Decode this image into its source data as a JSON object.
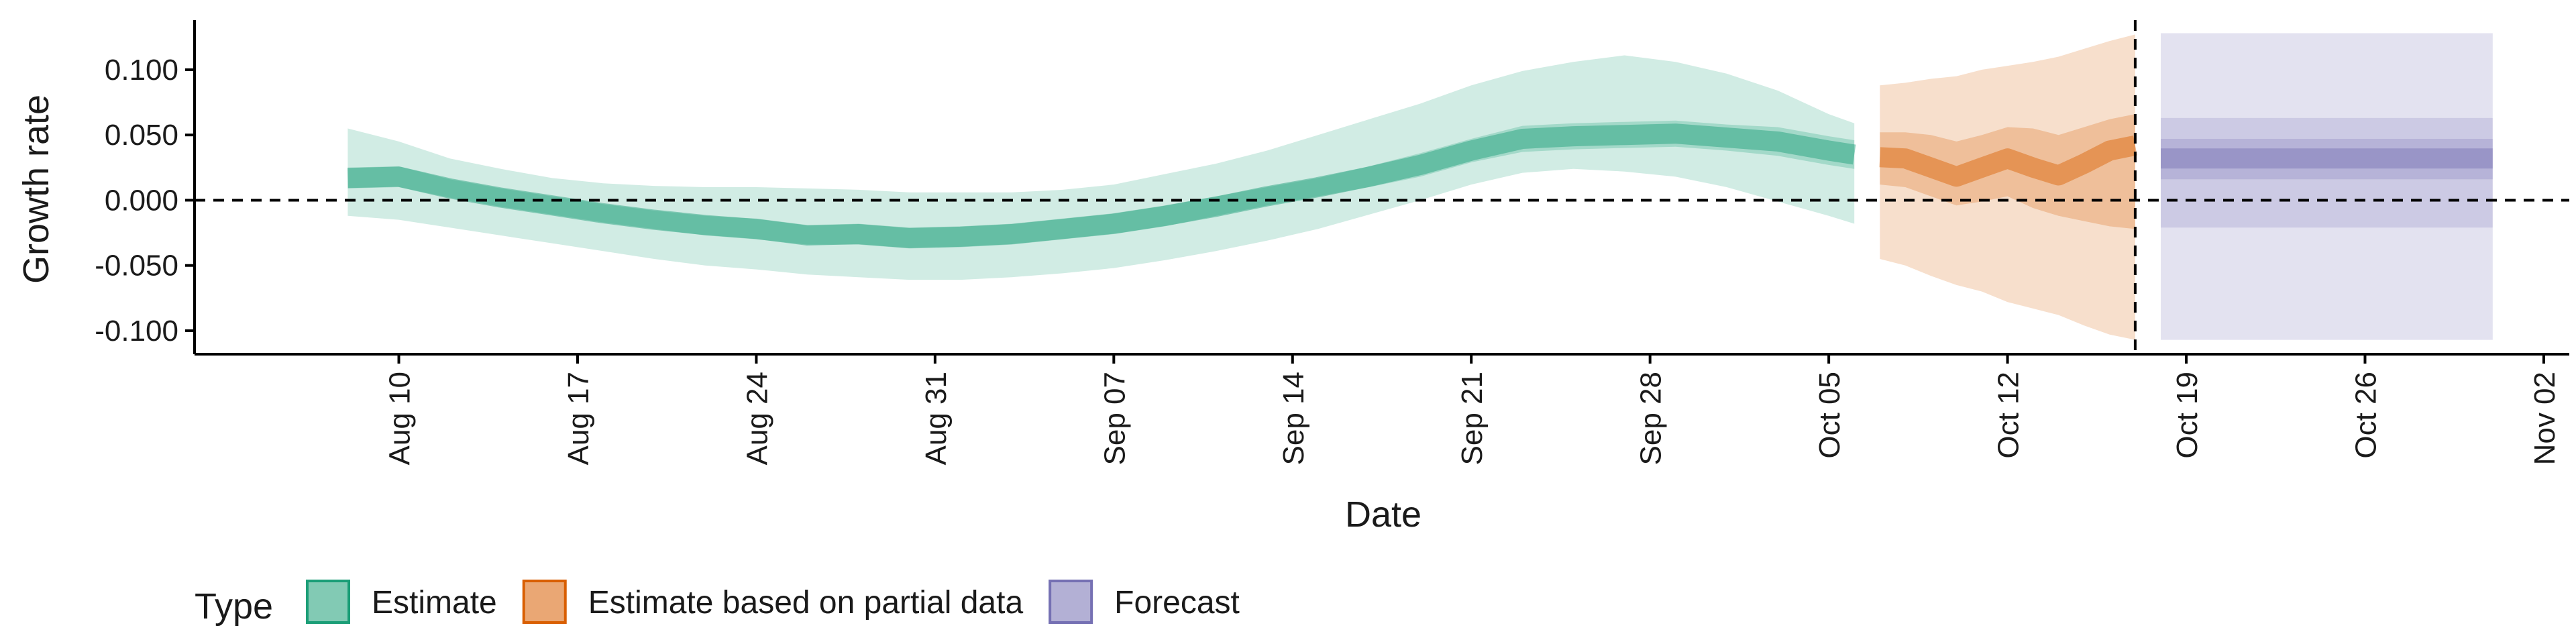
{
  "chart_data": {
    "type": "area",
    "xlabel": "Date",
    "ylabel": "Growth rate",
    "ylim": [
      -0.118,
      0.138
    ],
    "xlim": [
      "2020-08-02",
      "2020-11-03"
    ],
    "y_ticks": [
      -0.1,
      -0.05,
      0.0,
      0.05,
      0.1
    ],
    "y_tick_labels": [
      "-0.100",
      "-0.050",
      "0.000",
      "0.050",
      "0.100"
    ],
    "x_ticks": [
      "2020-08-10",
      "2020-08-17",
      "2020-08-24",
      "2020-08-31",
      "2020-09-07",
      "2020-09-14",
      "2020-09-21",
      "2020-09-28",
      "2020-10-05",
      "2020-10-12",
      "2020-10-19",
      "2020-10-26",
      "2020-11-02"
    ],
    "x_tick_labels": [
      "Aug 10",
      "Aug 17",
      "Aug 24",
      "Aug 31",
      "Sep 07",
      "Sep 14",
      "Sep 21",
      "Sep 28",
      "Oct 05",
      "Oct 12",
      "Oct 19",
      "Oct 26",
      "Nov 02"
    ],
    "reference_lines": {
      "horizontal_y": 0.0,
      "vertical_x": "2020-10-17"
    },
    "grid": false,
    "legend": {
      "title": "Type",
      "position": "bottom-left",
      "entries": [
        {
          "label": "Estimate",
          "fill": "#1b9e77",
          "border": "#1b9e77"
        },
        {
          "label": "Estimate based on partial data",
          "fill": "#d95f02",
          "border": "#d95f02"
        },
        {
          "label": "Forecast",
          "fill": "#7570b3",
          "border": "#7570b3"
        }
      ]
    },
    "series": [
      {
        "name": "Estimate",
        "color": "#1b9e77",
        "x": [
          "2020-08-08",
          "2020-08-10",
          "2020-08-12",
          "2020-08-14",
          "2020-08-16",
          "2020-08-18",
          "2020-08-20",
          "2020-08-22",
          "2020-08-24",
          "2020-08-26",
          "2020-08-28",
          "2020-08-30",
          "2020-09-01",
          "2020-09-03",
          "2020-09-05",
          "2020-09-07",
          "2020-09-09",
          "2020-09-11",
          "2020-09-13",
          "2020-09-15",
          "2020-09-17",
          "2020-09-19",
          "2020-09-21",
          "2020-09-23",
          "2020-09-25",
          "2020-09-27",
          "2020-09-29",
          "2020-10-01",
          "2020-10-03",
          "2020-10-05",
          "2020-10-06"
        ],
        "median": [
          0.017,
          0.018,
          0.009,
          0.002,
          -0.004,
          -0.01,
          -0.015,
          -0.019,
          -0.022,
          -0.027,
          -0.026,
          -0.029,
          -0.028,
          -0.026,
          -0.022,
          -0.018,
          -0.012,
          -0.005,
          0.003,
          0.01,
          0.018,
          0.027,
          0.038,
          0.047,
          0.049,
          0.05,
          0.051,
          0.048,
          0.045,
          0.038,
          0.035
        ],
        "lower_50": [
          0.009,
          0.01,
          0.002,
          -0.005,
          -0.011,
          -0.017,
          -0.022,
          -0.027,
          -0.03,
          -0.034,
          -0.034,
          -0.037,
          -0.036,
          -0.034,
          -0.03,
          -0.026,
          -0.02,
          -0.012,
          -0.004,
          0.003,
          0.01,
          0.018,
          0.029,
          0.037,
          0.039,
          0.04,
          0.041,
          0.038,
          0.034,
          0.027,
          0.024
        ],
        "upper_50": [
          0.025,
          0.026,
          0.016,
          0.009,
          0.003,
          -0.003,
          -0.008,
          -0.012,
          -0.014,
          -0.019,
          -0.018,
          -0.021,
          -0.02,
          -0.018,
          -0.014,
          -0.01,
          -0.004,
          0.003,
          0.01,
          0.017,
          0.026,
          0.036,
          0.047,
          0.057,
          0.059,
          0.06,
          0.061,
          0.058,
          0.056,
          0.049,
          0.046
        ],
        "lower_90": [
          -0.012,
          -0.015,
          -0.021,
          -0.027,
          -0.033,
          -0.039,
          -0.045,
          -0.05,
          -0.053,
          -0.057,
          -0.059,
          -0.061,
          -0.061,
          -0.059,
          -0.056,
          -0.052,
          -0.046,
          -0.039,
          -0.031,
          -0.022,
          -0.011,
          0.0,
          0.012,
          0.021,
          0.024,
          0.022,
          0.018,
          0.01,
          -0.001,
          -0.012,
          -0.018
        ],
        "upper_90": [
          0.055,
          0.045,
          0.032,
          0.024,
          0.017,
          0.013,
          0.011,
          0.01,
          0.01,
          0.009,
          0.008,
          0.006,
          0.006,
          0.006,
          0.008,
          0.012,
          0.02,
          0.028,
          0.038,
          0.05,
          0.062,
          0.074,
          0.088,
          0.099,
          0.106,
          0.111,
          0.106,
          0.097,
          0.084,
          0.066,
          0.059
        ]
      },
      {
        "name": "Estimate based on partial data",
        "color": "#d95f02",
        "x": [
          "2020-10-07",
          "2020-10-08",
          "2020-10-09",
          "2020-10-10",
          "2020-10-11",
          "2020-10-12",
          "2020-10-13",
          "2020-10-14",
          "2020-10-15",
          "2020-10-16",
          "2020-10-17"
        ],
        "median": [
          0.033,
          0.032,
          0.025,
          0.018,
          0.025,
          0.032,
          0.025,
          0.019,
          0.028,
          0.038,
          0.042
        ],
        "lower_50": [
          0.012,
          0.01,
          0.003,
          -0.004,
          -0.001,
          0.003,
          -0.006,
          -0.012,
          -0.016,
          -0.02,
          -0.022
        ],
        "upper_50": [
          0.052,
          0.052,
          0.05,
          0.045,
          0.05,
          0.056,
          0.055,
          0.05,
          0.056,
          0.062,
          0.066
        ],
        "lower_90": [
          -0.045,
          -0.05,
          -0.058,
          -0.065,
          -0.07,
          -0.078,
          -0.083,
          -0.088,
          -0.096,
          -0.103,
          -0.107
        ],
        "upper_90": [
          0.088,
          0.09,
          0.093,
          0.095,
          0.1,
          0.103,
          0.106,
          0.11,
          0.116,
          0.122,
          0.127
        ]
      },
      {
        "name": "Forecast",
        "color": "#7570b3",
        "x": [
          "2020-10-18",
          "2020-10-31"
        ],
        "median": [
          0.032,
          0.032
        ],
        "lower_50": [
          0.016,
          0.016
        ],
        "upper_50": [
          0.047,
          0.047
        ],
        "lower_90": [
          -0.021,
          -0.021
        ],
        "upper_90": [
          0.063,
          0.063
        ],
        "lower_outer": [
          -0.107,
          -0.107
        ],
        "upper_outer": [
          0.128,
          0.128
        ]
      }
    ]
  }
}
